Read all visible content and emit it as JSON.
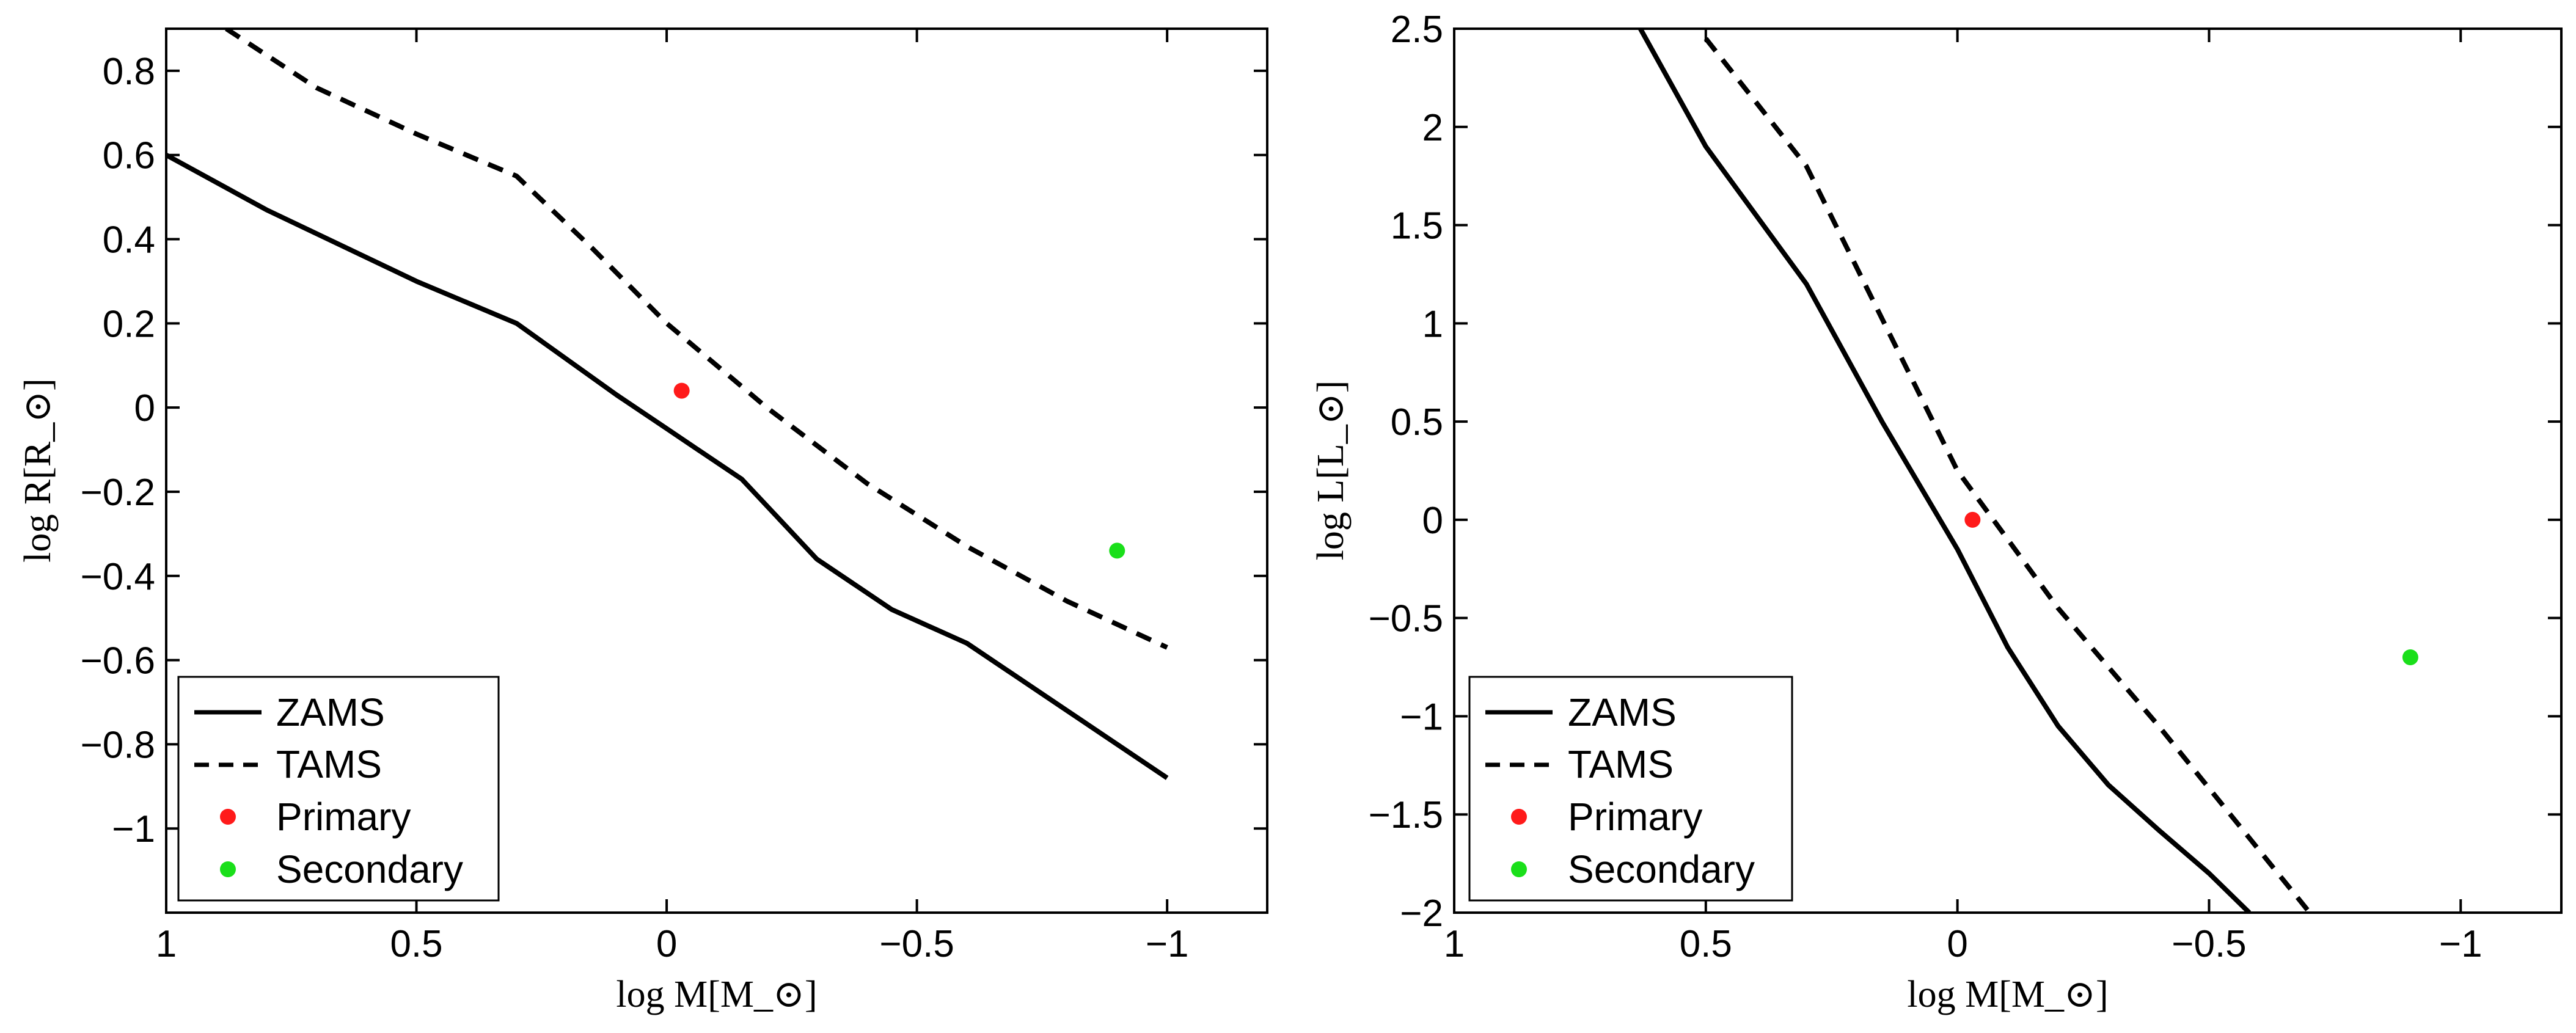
{
  "chart_data": [
    {
      "type": "line",
      "title": "",
      "xlabel": "log M[M_⊙]",
      "ylabel": "log R[R_⊙]",
      "xlim": [
        1.0,
        -1.2
      ],
      "ylim": [
        -1.2,
        0.9
      ],
      "xticks": [
        1,
        0.5,
        0,
        -0.5,
        -1
      ],
      "xtick_labels": [
        "1",
        "0.5",
        "0",
        "−0.5",
        "−1"
      ],
      "yticks": [
        0.8,
        0.6,
        0.4,
        0.2,
        0,
        -0.2,
        -0.4,
        -0.6,
        -0.8,
        -1
      ],
      "ytick_labels": [
        "0.8",
        "0.6",
        "0.4",
        "0.2",
        "0",
        "−0.2",
        "−0.4",
        "−0.6",
        "−0.8",
        "−1"
      ],
      "grid": false,
      "legend_location": "bottom-left",
      "series": [
        {
          "name": "ZAMS",
          "style": "solid",
          "color": "#000000",
          "x": [
            1.0,
            0.8,
            0.5,
            0.3,
            0.1,
            0.0,
            -0.05,
            -0.15,
            -0.3,
            -0.45,
            -0.6,
            -0.8,
            -1.0
          ],
          "y": [
            0.6,
            0.47,
            0.3,
            0.2,
            0.03,
            -0.05,
            -0.09,
            -0.17,
            -0.36,
            -0.48,
            -0.56,
            -0.72,
            -0.88
          ]
        },
        {
          "name": "TAMS",
          "style": "dashed",
          "color": "#000000",
          "x": [
            0.88,
            0.7,
            0.5,
            0.3,
            0.15,
            0.0,
            -0.2,
            -0.4,
            -0.6,
            -0.8,
            -1.0
          ],
          "y": [
            0.9,
            0.76,
            0.65,
            0.55,
            0.38,
            0.2,
            0.0,
            -0.18,
            -0.33,
            -0.46,
            -0.57
          ]
        }
      ],
      "points": [
        {
          "name": "Primary",
          "color": "#ff1a1a",
          "x": -0.03,
          "y": 0.04
        },
        {
          "name": "Secondary",
          "color": "#1adf1a",
          "x": -0.9,
          "y": -0.34
        }
      ],
      "legend": [
        "ZAMS",
        "TAMS",
        "Primary",
        "Secondary"
      ]
    },
    {
      "type": "line",
      "title": "",
      "xlabel": "log M[M_⊙]",
      "ylabel": "log L[L_⊙]",
      "xlim": [
        1.0,
        -1.2
      ],
      "ylim": [
        -2.0,
        2.5
      ],
      "xticks": [
        1,
        0.5,
        0,
        -0.5,
        -1
      ],
      "xtick_labels": [
        "1",
        "0.5",
        "0",
        "−0.5",
        "−1"
      ],
      "yticks": [
        2.5,
        2,
        1.5,
        1,
        0.5,
        0,
        -0.5,
        -1,
        -1.5,
        -2
      ],
      "ytick_labels": [
        "2.5",
        "2",
        "1.5",
        "1",
        "0.5",
        "0",
        "−0.5",
        "−1",
        "−1.5",
        "−2"
      ],
      "grid": false,
      "legend_location": "bottom-left",
      "series": [
        {
          "name": "ZAMS",
          "style": "solid",
          "color": "#000000",
          "x": [
            0.63,
            0.5,
            0.3,
            0.15,
            0.0,
            -0.1,
            -0.2,
            -0.3,
            -0.4,
            -0.5,
            -0.58
          ],
          "y": [
            2.5,
            1.9,
            1.2,
            0.5,
            -0.15,
            -0.65,
            -1.05,
            -1.35,
            -1.58,
            -1.8,
            -2.0
          ]
        },
        {
          "name": "TAMS",
          "style": "dashed",
          "color": "#000000",
          "x": [
            0.5,
            0.3,
            0.0,
            -0.2,
            -0.4,
            -0.7
          ],
          "y": [
            2.45,
            1.8,
            0.25,
            -0.45,
            -1.05,
            -2.0
          ]
        }
      ],
      "points": [
        {
          "name": "Primary",
          "color": "#ff1a1a",
          "x": -0.03,
          "y": 0.0
        },
        {
          "name": "Secondary",
          "color": "#1adf1a",
          "x": -0.9,
          "y": -0.7
        }
      ],
      "legend": [
        "ZAMS",
        "TAMS",
        "Primary",
        "Secondary"
      ]
    }
  ]
}
